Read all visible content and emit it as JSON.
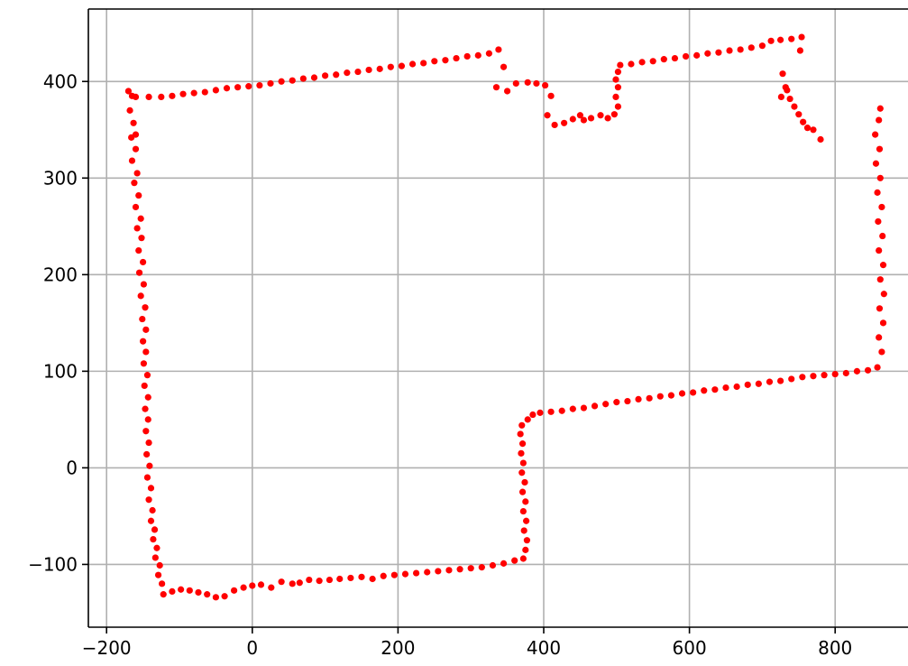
{
  "chart_data": {
    "type": "scatter",
    "title": "",
    "xlabel": "",
    "ylabel": "",
    "xlim": [
      -225,
      900
    ],
    "ylim": [
      -165,
      475
    ],
    "grid": true,
    "legend": "none",
    "marker_color": "#ff0000",
    "x_ticks": [
      -200,
      0,
      200,
      400,
      600,
      800
    ],
    "x_tick_labels": [
      "−200",
      "0",
      "200",
      "400",
      "600",
      "800"
    ],
    "y_ticks": [
      -100,
      0,
      100,
      200,
      300,
      400
    ],
    "y_tick_labels": [
      "−100",
      "0",
      "100",
      "200",
      "300",
      "400"
    ],
    "series": [
      {
        "points": [
          [
            -170,
            390
          ],
          [
            -165,
            385
          ],
          [
            -168,
            370
          ],
          [
            -163,
            357
          ],
          [
            -160,
            345
          ],
          [
            -166,
            342
          ],
          [
            -160,
            330
          ],
          [
            -165,
            318
          ],
          [
            -158,
            305
          ],
          [
            -162,
            295
          ],
          [
            -156,
            282
          ],
          [
            -160,
            270
          ],
          [
            -153,
            258
          ],
          [
            -158,
            248
          ],
          [
            -152,
            238
          ],
          [
            -156,
            225
          ],
          [
            -150,
            213
          ],
          [
            -155,
            202
          ],
          [
            -149,
            190
          ],
          [
            -153,
            178
          ],
          [
            -147,
            166
          ],
          [
            -151,
            154
          ],
          [
            -146,
            143
          ],
          [
            -150,
            131
          ],
          [
            -146,
            120
          ],
          [
            -149,
            108
          ],
          [
            -144,
            96
          ],
          [
            -148,
            85
          ],
          [
            -143,
            73
          ],
          [
            -147,
            61
          ],
          [
            -143,
            50
          ],
          [
            -146,
            38
          ],
          [
            -142,
            26
          ],
          [
            -145,
            14
          ],
          [
            -141,
            2
          ],
          [
            -144,
            -10
          ],
          [
            -139,
            -21
          ],
          [
            -142,
            -33
          ],
          [
            -137,
            -44
          ],
          [
            -139,
            -55
          ],
          [
            -134,
            -64
          ],
          [
            -136,
            -74
          ],
          [
            -131,
            -83
          ],
          [
            -133,
            -93
          ],
          [
            -127,
            -101
          ],
          [
            -129,
            -111
          ],
          [
            -124,
            -120
          ],
          [
            -122,
            -131
          ],
          [
            -110,
            -128
          ],
          [
            -98,
            -126
          ],
          [
            -86,
            -127
          ],
          [
            -74,
            -129
          ],
          [
            -62,
            -131
          ],
          [
            -50,
            -134
          ],
          [
            -38,
            -133
          ],
          [
            -25,
            -127
          ],
          [
            -12,
            -124
          ],
          [
            0,
            -122
          ],
          [
            12,
            -121
          ],
          [
            26,
            -124
          ],
          [
            40,
            -118
          ],
          [
            55,
            -120
          ],
          [
            65,
            -119
          ],
          [
            78,
            -116
          ],
          [
            92,
            -117
          ],
          [
            106,
            -116
          ],
          [
            120,
            -115
          ],
          [
            135,
            -114
          ],
          [
            150,
            -113
          ],
          [
            165,
            -115
          ],
          [
            180,
            -112
          ],
          [
            195,
            -111
          ],
          [
            210,
            -110
          ],
          [
            225,
            -109
          ],
          [
            240,
            -108
          ],
          [
            255,
            -107
          ],
          [
            270,
            -106
          ],
          [
            285,
            -105
          ],
          [
            300,
            -104
          ],
          [
            315,
            -103
          ],
          [
            330,
            -101
          ],
          [
            345,
            -99
          ],
          [
            360,
            -96
          ],
          [
            372,
            -94
          ],
          [
            375,
            -85
          ],
          [
            377,
            -75
          ],
          [
            373,
            -65
          ],
          [
            376,
            -55
          ],
          [
            372,
            -45
          ],
          [
            375,
            -35
          ],
          [
            371,
            -25
          ],
          [
            374,
            -15
          ],
          [
            370,
            -5
          ],
          [
            372,
            5
          ],
          [
            369,
            15
          ],
          [
            371,
            25
          ],
          [
            368,
            35
          ],
          [
            370,
            44
          ],
          [
            378,
            50
          ],
          [
            385,
            55
          ],
          [
            395,
            57
          ],
          [
            410,
            58
          ],
          [
            425,
            59
          ],
          [
            440,
            61
          ],
          [
            455,
            62
          ],
          [
            470,
            64
          ],
          [
            485,
            66
          ],
          [
            500,
            68
          ],
          [
            515,
            69
          ],
          [
            530,
            71
          ],
          [
            545,
            72
          ],
          [
            560,
            74
          ],
          [
            575,
            75
          ],
          [
            590,
            77
          ],
          [
            605,
            78
          ],
          [
            620,
            80
          ],
          [
            635,
            81
          ],
          [
            650,
            83
          ],
          [
            665,
            84
          ],
          [
            680,
            86
          ],
          [
            695,
            87
          ],
          [
            710,
            89
          ],
          [
            725,
            90
          ],
          [
            740,
            92
          ],
          [
            755,
            94
          ],
          [
            770,
            95
          ],
          [
            785,
            96
          ],
          [
            800,
            97
          ],
          [
            815,
            98
          ],
          [
            830,
            100
          ],
          [
            845,
            101
          ],
          [
            858,
            104
          ],
          [
            864,
            120
          ],
          [
            860,
            135
          ],
          [
            866,
            150
          ],
          [
            861,
            165
          ],
          [
            867,
            180
          ],
          [
            862,
            195
          ],
          [
            866,
            210
          ],
          [
            860,
            225
          ],
          [
            865,
            240
          ],
          [
            859,
            255
          ],
          [
            864,
            270
          ],
          [
            858,
            285
          ],
          [
            862,
            300
          ],
          [
            856,
            315
          ],
          [
            861,
            330
          ],
          [
            855,
            345
          ],
          [
            860,
            360
          ],
          [
            862,
            372
          ],
          [
            -160,
            384
          ],
          [
            -142,
            384
          ],
          [
            -125,
            384
          ],
          [
            -110,
            385
          ],
          [
            -95,
            387
          ],
          [
            -80,
            388
          ],
          [
            -65,
            389
          ],
          [
            -50,
            391
          ],
          [
            -35,
            393
          ],
          [
            -20,
            394
          ],
          [
            -5,
            395
          ],
          [
            10,
            396
          ],
          [
            25,
            398
          ],
          [
            40,
            400
          ],
          [
            55,
            401
          ],
          [
            70,
            403
          ],
          [
            85,
            404
          ],
          [
            100,
            406
          ],
          [
            115,
            407
          ],
          [
            130,
            409
          ],
          [
            145,
            410
          ],
          [
            160,
            412
          ],
          [
            175,
            413
          ],
          [
            190,
            415
          ],
          [
            205,
            416
          ],
          [
            220,
            418
          ],
          [
            235,
            419
          ],
          [
            250,
            421
          ],
          [
            265,
            422
          ],
          [
            280,
            424
          ],
          [
            295,
            426
          ],
          [
            310,
            427
          ],
          [
            325,
            429
          ],
          [
            338,
            433
          ],
          [
            345,
            415
          ],
          [
            335,
            394
          ],
          [
            350,
            390
          ],
          [
            362,
            398
          ],
          [
            378,
            399
          ],
          [
            390,
            398
          ],
          [
            402,
            396
          ],
          [
            410,
            385
          ],
          [
            405,
            365
          ],
          [
            415,
            355
          ],
          [
            428,
            357
          ],
          [
            440,
            361
          ],
          [
            450,
            365
          ],
          [
            455,
            360
          ],
          [
            465,
            362
          ],
          [
            478,
            365
          ],
          [
            488,
            362
          ],
          [
            497,
            366
          ],
          [
            502,
            374
          ],
          [
            499,
            384
          ],
          [
            502,
            394
          ],
          [
            499,
            402
          ],
          [
            502,
            410
          ],
          [
            505,
            417
          ],
          [
            520,
            418
          ],
          [
            535,
            420
          ],
          [
            550,
            421
          ],
          [
            565,
            423
          ],
          [
            580,
            424
          ],
          [
            595,
            426
          ],
          [
            610,
            427
          ],
          [
            625,
            429
          ],
          [
            640,
            430
          ],
          [
            655,
            432
          ],
          [
            670,
            433
          ],
          [
            685,
            435
          ],
          [
            700,
            437
          ],
          [
            712,
            442
          ],
          [
            725,
            443
          ],
          [
            740,
            444
          ],
          [
            754,
            446
          ],
          [
            752,
            432
          ],
          [
            728,
            408
          ],
          [
            732,
            394
          ],
          [
            738,
            382
          ],
          [
            744,
            374
          ],
          [
            750,
            366
          ],
          [
            756,
            358
          ],
          [
            762,
            352
          ],
          [
            770,
            350
          ],
          [
            780,
            340
          ],
          [
            726,
            384
          ],
          [
            734,
            391
          ]
        ]
      }
    ]
  }
}
